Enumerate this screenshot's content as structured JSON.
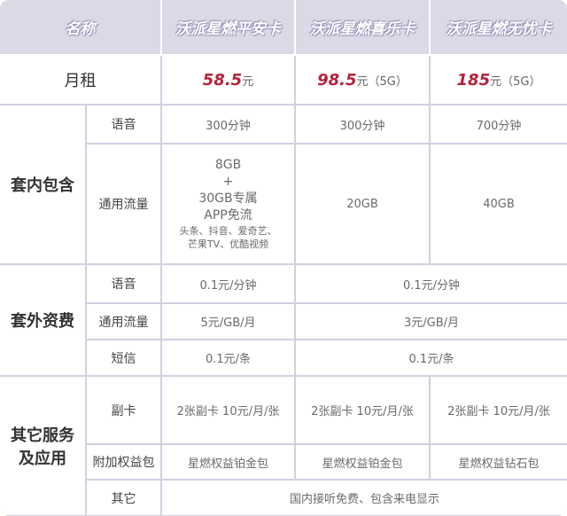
{
  "header": {
    "name_label": "名称",
    "plans": [
      "沃派星燃平安卡",
      "沃派星燃喜乐卡",
      "沃派星燃无忧卡"
    ]
  },
  "monthly": {
    "label": "月租",
    "prices": [
      {
        "amount": "58.5",
        "unit": "元"
      },
      {
        "amount": "98.5",
        "unit": "元（5G）"
      },
      {
        "amount": "185",
        "unit": "元（5G）"
      }
    ]
  },
  "included": {
    "label": "套内包含",
    "voice": {
      "label": "语音",
      "values": [
        "300分钟",
        "300分钟",
        "700分钟"
      ]
    },
    "data": {
      "label": "通用流量",
      "plan1": {
        "l1": "8GB",
        "l2": "+",
        "l3": "30GB专属",
        "l4": "APP免流",
        "l5": "头条、抖音、爱奇艺、",
        "l6": "芒果TV、优酷视频"
      },
      "plan2": "20GB",
      "plan3": "40GB"
    }
  },
  "extra": {
    "label": "套外资费",
    "voice": {
      "label": "语音",
      "plan1": "0.1元/分钟",
      "others": "0.1元/分钟"
    },
    "data": {
      "label": "通用流量",
      "plan1": "5元/GB/月",
      "others": "3元/GB/月"
    },
    "sms": {
      "label": "短信",
      "plan1": "0.1元/条",
      "others": "0.1元/条"
    }
  },
  "services": {
    "label_l1": "其它服务",
    "label_l2": "及应用",
    "sub_card": {
      "label": "副卡",
      "values": [
        "2张副卡 10元/月/张",
        "2张副卡 10元/月/张",
        "2张副卡 10元/月/张"
      ]
    },
    "bonus": {
      "label": "附加权益包",
      "values": [
        "星燃权益铂金包",
        "星燃权益铂金包",
        "星燃权益钻石包"
      ]
    },
    "other": {
      "label": "其它",
      "value": "国内接听免费、包含来电显示"
    }
  },
  "colors": {
    "price": "#b5233a",
    "header_bg": "#dcd8e6",
    "border": "#d3cfe0"
  }
}
